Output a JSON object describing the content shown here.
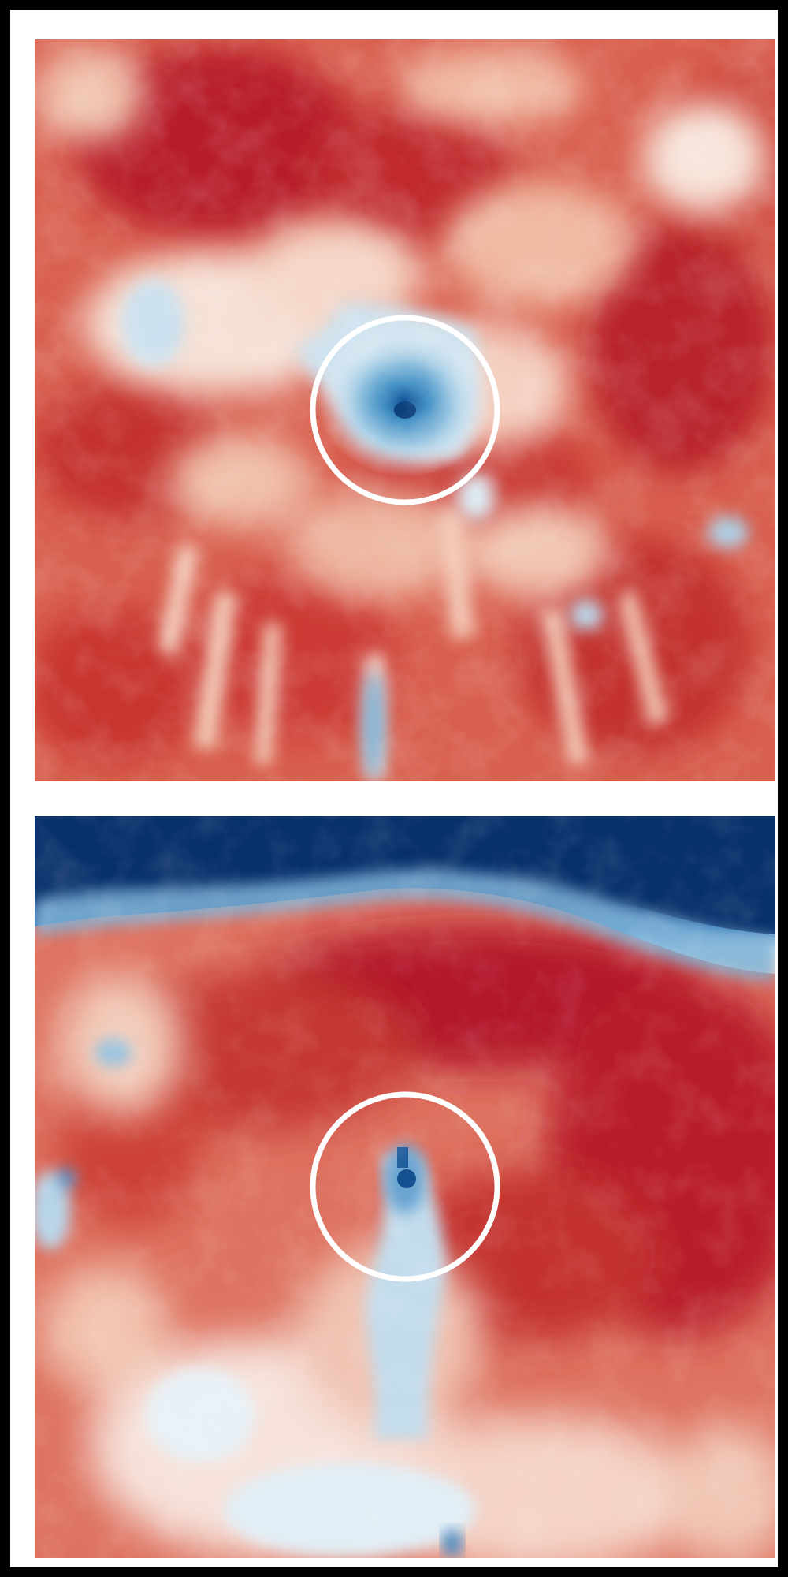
{
  "figure": {
    "panels": [
      {
        "id": "top",
        "description_colors": {
          "hot": "#c0272d",
          "warm": "#e8836a",
          "light": "#fbe3d6",
          "white": "#f7f7f7",
          "cool": "#9fc8e2",
          "cold": "#2b72b0"
        },
        "marker": "circle"
      },
      {
        "id": "bottom",
        "description_colors": {
          "hot": "#b2182b",
          "warm": "#e8836a",
          "light": "#fbe3d6",
          "white": "#f7f7f7",
          "cool": "#a8cde4",
          "cold": "#08306b"
        },
        "marker": "circle"
      }
    ],
    "colors": {
      "background": "#000000",
      "frame": "#ffffff",
      "circle_stroke": "#ffffff"
    }
  }
}
